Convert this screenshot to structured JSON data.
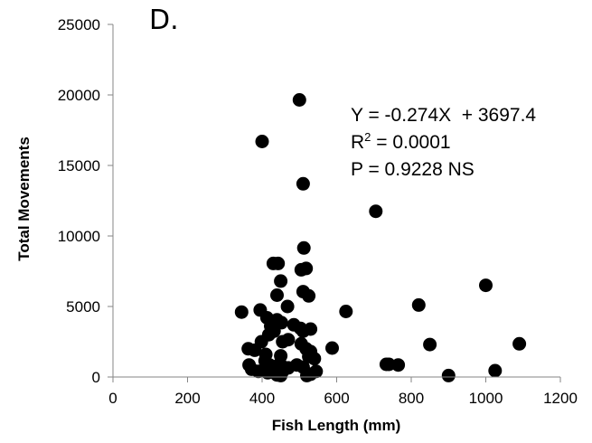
{
  "chart_data": {
    "type": "scatter",
    "panel_label": "D.",
    "xlabel": "Fish Length (mm)",
    "ylabel": "Total Movements",
    "xlim": [
      0,
      1200
    ],
    "ylim": [
      0,
      25000
    ],
    "x_ticks": [
      "0",
      "200",
      "400",
      "600",
      "800",
      "1000",
      "1200"
    ],
    "y_ticks": [
      "0",
      "5000",
      "10000",
      "15000",
      "20000",
      "25000"
    ],
    "grid": false,
    "legend": false,
    "annotations": {
      "equation": "Y = -0.274X  + 3697.4",
      "r2_prefix": "R",
      "r2_sup": "2",
      "r2_value": " = 0.0001",
      "p_value": "P = 0.9228 NS"
    },
    "marker_color": "#000000",
    "points": [
      [
        500,
        19650
      ],
      [
        400,
        16700
      ],
      [
        510,
        13700
      ],
      [
        705,
        11750
      ],
      [
        512,
        9150
      ],
      [
        430,
        8050
      ],
      [
        443,
        8050
      ],
      [
        505,
        7600
      ],
      [
        518,
        7700
      ],
      [
        1000,
        6500
      ],
      [
        450,
        6800
      ],
      [
        510,
        6050
      ],
      [
        525,
        5750
      ],
      [
        440,
        5800
      ],
      [
        820,
        5100
      ],
      [
        468,
        5000
      ],
      [
        345,
        4600
      ],
      [
        625,
        4650
      ],
      [
        395,
        4750
      ],
      [
        413,
        4200
      ],
      [
        440,
        4050
      ],
      [
        452,
        3850
      ],
      [
        423,
        3600
      ],
      [
        485,
        3700
      ],
      [
        503,
        3450
      ],
      [
        530,
        3400
      ],
      [
        432,
        3250
      ],
      [
        510,
        3250
      ],
      [
        418,
        3000
      ],
      [
        470,
        2650
      ],
      [
        455,
        2500
      ],
      [
        505,
        2350
      ],
      [
        398,
        2500
      ],
      [
        850,
        2300
      ],
      [
        1090,
        2350
      ],
      [
        363,
        2000
      ],
      [
        380,
        1900
      ],
      [
        518,
        2000
      ],
      [
        588,
        2050
      ],
      [
        530,
        1800
      ],
      [
        410,
        1600
      ],
      [
        450,
        1500
      ],
      [
        525,
        1450
      ],
      [
        408,
        1150
      ],
      [
        448,
        950
      ],
      [
        493,
        850
      ],
      [
        365,
        850
      ],
      [
        420,
        850
      ],
      [
        540,
        1300
      ],
      [
        733,
        900
      ],
      [
        765,
        850
      ],
      [
        740,
        900
      ],
      [
        510,
        700
      ],
      [
        470,
        650
      ],
      [
        372,
        550
      ],
      [
        390,
        400
      ],
      [
        415,
        300
      ],
      [
        428,
        350
      ],
      [
        455,
        400
      ],
      [
        545,
        400
      ],
      [
        1025,
        450
      ],
      [
        530,
        200
      ],
      [
        440,
        150
      ],
      [
        450,
        100
      ],
      [
        520,
        100
      ],
      [
        900,
        100
      ]
    ]
  }
}
